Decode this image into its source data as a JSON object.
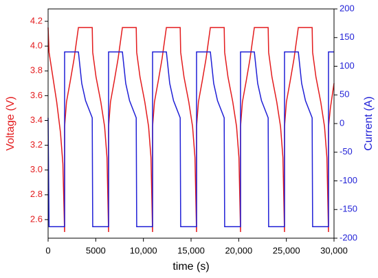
{
  "chart_data": {
    "type": "line",
    "x_label": "time (s)",
    "y_label": "Voltage (V)",
    "y2_label": "Current (A)",
    "x": [
      0,
      100,
      500,
      900,
      1300,
      1550,
      1730,
      1730,
      1930,
      2330,
      2730,
      3180,
      3530,
      3930,
      4630,
      4680,
      5030,
      5530,
      5930,
      6180,
      6345,
      6345,
      6545,
      6945,
      7345,
      7795,
      8145,
      8545,
      9245,
      9295,
      9645,
      10145,
      10545,
      10795,
      10960,
      10960,
      11160,
      11560,
      11960,
      12410,
      12760,
      13160,
      13860,
      13910,
      14260,
      14760,
      15160,
      15410,
      15575,
      15575,
      15775,
      16175,
      16575,
      17025,
      17375,
      17775,
      18475,
      18525,
      18875,
      19375,
      19775,
      20025,
      20190,
      20190,
      20390,
      20790,
      21190,
      21640,
      21990,
      22390,
      23090,
      23140,
      23490,
      23990,
      24390,
      24640,
      24805,
      24805,
      25005,
      25405,
      25805,
      26255,
      26605,
      27005,
      27705,
      27755,
      28105,
      28605,
      29005,
      29255,
      29420,
      29420,
      29620,
      30000
    ],
    "series": [
      {
        "name": "Voltage (V)",
        "color": "#e31a1c",
        "axis": "y",
        "values": [
          4.15,
          3.95,
          3.75,
          3.55,
          3.3,
          3.05,
          2.5,
          3.35,
          3.55,
          3.72,
          3.9,
          4.15,
          4.15,
          4.15,
          4.15,
          3.95,
          3.75,
          3.55,
          3.35,
          3.1,
          2.5,
          3.35,
          3.55,
          3.72,
          3.9,
          4.15,
          4.15,
          4.15,
          4.15,
          3.95,
          3.75,
          3.55,
          3.35,
          3.1,
          2.5,
          3.35,
          3.55,
          3.72,
          3.9,
          4.15,
          4.15,
          4.15,
          4.15,
          3.95,
          3.75,
          3.55,
          3.35,
          3.1,
          2.5,
          3.35,
          3.55,
          3.72,
          3.9,
          4.15,
          4.15,
          4.15,
          4.15,
          3.95,
          3.75,
          3.55,
          3.35,
          3.1,
          2.5,
          3.35,
          3.55,
          3.72,
          3.9,
          4.15,
          4.15,
          4.15,
          4.15,
          3.95,
          3.75,
          3.55,
          3.35,
          3.1,
          2.5,
          3.35,
          3.55,
          3.72,
          3.9,
          4.15,
          4.15,
          4.15,
          4.15,
          3.95,
          3.75,
          3.55,
          3.35,
          3.1,
          2.5,
          3.35,
          3.5,
          3.7
        ]
      },
      {
        "name": "Current (A)",
        "color": "#1f1fd6",
        "axis": "y2",
        "values": [
          10,
          -180,
          -180,
          -180,
          -180,
          -180,
          -180,
          125,
          125,
          125,
          125,
          125,
          70,
          40,
          10,
          -180,
          -180,
          -180,
          -180,
          -180,
          -180,
          125,
          125,
          125,
          125,
          125,
          70,
          40,
          10,
          -180,
          -180,
          -180,
          -180,
          -180,
          -180,
          125,
          125,
          125,
          125,
          125,
          70,
          40,
          10,
          -180,
          -180,
          -180,
          -180,
          -180,
          -180,
          125,
          125,
          125,
          125,
          125,
          70,
          40,
          10,
          -180,
          -180,
          -180,
          -180,
          -180,
          -180,
          125,
          125,
          125,
          125,
          125,
          70,
          40,
          10,
          -180,
          -180,
          -180,
          -180,
          -180,
          -180,
          125,
          125,
          125,
          125,
          125,
          70,
          40,
          10,
          -180,
          -180,
          -180,
          -180,
          -180,
          -180,
          125,
          125,
          125
        ]
      }
    ],
    "xlim": [
      0,
      30000
    ],
    "xticks": [
      0,
      5000,
      {
        "value": 10000,
        "label": "10,000"
      },
      {
        "value": 15000,
        "label": "15,000"
      },
      {
        "value": 20000,
        "label": "20,000"
      },
      {
        "value": 25000,
        "label": "25,000"
      },
      {
        "value": 30000,
        "label": "30,000"
      }
    ],
    "ylim": [
      2.45,
      4.3
    ],
    "yticks": [
      2.6,
      2.8,
      {
        "value": 3,
        "label": "3.0"
      },
      3.2,
      3.4,
      3.6,
      3.8,
      {
        "value": 4,
        "label": "4.0"
      },
      4.2
    ],
    "y2lim": [
      -200,
      200
    ],
    "y2ticks": [
      -200,
      -150,
      -100,
      -50,
      0,
      50,
      100,
      150,
      200
    ]
  }
}
